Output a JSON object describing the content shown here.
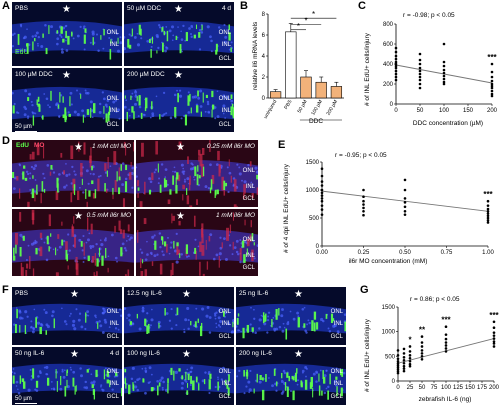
{
  "panels": {
    "A": {
      "letter": "A",
      "tiles": [
        {
          "label": "PBS",
          "extra": "",
          "layers": [
            "ONL",
            "INL"
          ],
          "edu": "EdU"
        },
        {
          "label": "50 µM DDC",
          "extra": "4 d",
          "layers": [
            "ONL",
            "INL",
            "GCL"
          ],
          "edu": ""
        },
        {
          "label": "100 µM DDC",
          "extra": "",
          "layers": [
            "ONL",
            "INL",
            "GCL"
          ],
          "edu": ""
        },
        {
          "label": "200 µM DDC",
          "extra": "",
          "layers": [
            "ONL",
            "INL",
            "GCL"
          ],
          "edu": ""
        }
      ],
      "scalebar": "50 µm"
    },
    "B": {
      "letter": "B",
      "ylabel": "relative il6 mRNA levels",
      "group_label": "DDC"
    },
    "C": {
      "letter": "C",
      "stat": "r = -0.98; p < 0.05",
      "ylabel": "# of INL EdU+ cells/injury",
      "xlabel": "DDC concentration (µM)",
      "sig": "***"
    },
    "D": {
      "letter": "D",
      "legend_edu": "EdU",
      "legend_mo": "MO",
      "tiles": [
        {
          "label": "1 mM ctrl MO",
          "layers": []
        },
        {
          "label": "0.25 mM il6r MO",
          "layers": [
            "ONL",
            "INL",
            "GCL"
          ]
        },
        {
          "label": "0.5 mM il6r MO",
          "layers": []
        },
        {
          "label": "1 mM il6r MO",
          "layers": [
            "ONL",
            "INL",
            "GCL"
          ]
        }
      ]
    },
    "E": {
      "letter": "E",
      "stat": "r = -0.95; p < 0.05",
      "ylabel": "# of 4 dpi INL EdU+ cells/injury",
      "xlabel": "il6r MO concentration (mM)",
      "sig": "***"
    },
    "F": {
      "letter": "F",
      "tiles": [
        {
          "label": "PBS",
          "extra": "",
          "layers": [
            "ONL",
            "INL",
            "GCL"
          ]
        },
        {
          "label": "12.5 ng IL-6",
          "extra": "",
          "layers": [
            "ONL",
            "INL",
            "GCL"
          ]
        },
        {
          "label": "25 ng IL-6",
          "extra": "",
          "layers": [
            "ONL",
            "INL",
            "GCL"
          ]
        },
        {
          "label": "50 ng IL-6",
          "extra": "4 d",
          "layers": [
            "ONL",
            "INL",
            "GCL"
          ]
        },
        {
          "label": "100 ng IL-6",
          "extra": "",
          "layers": [
            "ONL",
            "INL",
            "GCL"
          ]
        },
        {
          "label": "200 ng IL-6",
          "extra": "",
          "layers": [
            "ONL",
            "INL",
            "GCL"
          ]
        }
      ],
      "scalebar": "50 µm"
    },
    "G": {
      "letter": "G",
      "stat": "r = 0.86; p < 0.05",
      "ylabel": "# of INL EdU+ cells/injury",
      "xlabel": "zebrafish IL-6 (ng)",
      "sigs": [
        "*",
        "**",
        "***",
        "***"
      ]
    }
  },
  "chart_data": [
    {
      "panel": "B",
      "type": "bar",
      "categories": [
        "uninjured",
        "PBS",
        "50 µM",
        "100 µM",
        "200 µM"
      ],
      "values": [
        0.6,
        6.3,
        2.0,
        1.5,
        1.1
      ],
      "errors": [
        0.2,
        0.8,
        0.6,
        0.5,
        0.4
      ],
      "ylabel": "relative il6 mRNA levels",
      "ylim": [
        0,
        8
      ],
      "yticks": [
        0,
        2,
        4,
        6,
        8
      ],
      "significance": [
        "*",
        "*",
        "*"
      ]
    },
    {
      "panel": "C",
      "type": "scatter",
      "xlabel": "DDC concentration (µM)",
      "ylabel": "# of INL EdU+ cells/injury",
      "xlim": [
        0,
        200
      ],
      "ylim": [
        0,
        800
      ],
      "xticks": [
        0,
        50,
        100,
        150,
        200
      ],
      "yticks": [
        0,
        200,
        400,
        600,
        800
      ],
      "points": [
        [
          0,
          560
        ],
        [
          0,
          520
        ],
        [
          0,
          480
        ],
        [
          0,
          450
        ],
        [
          0,
          420
        ],
        [
          0,
          400
        ],
        [
          0,
          380
        ],
        [
          0,
          360
        ],
        [
          0,
          330
        ],
        [
          0,
          300
        ],
        [
          0,
          270
        ],
        [
          0,
          240
        ],
        [
          50,
          500
        ],
        [
          50,
          440
        ],
        [
          50,
          400
        ],
        [
          50,
          360
        ],
        [
          50,
          330
        ],
        [
          50,
          300
        ],
        [
          50,
          270
        ],
        [
          50,
          240
        ],
        [
          50,
          200
        ],
        [
          50,
          160
        ],
        [
          100,
          600
        ],
        [
          100,
          420
        ],
        [
          100,
          380
        ],
        [
          100,
          340
        ],
        [
          100,
          310
        ],
        [
          100,
          280
        ],
        [
          100,
          250
        ],
        [
          100,
          220
        ],
        [
          100,
          200
        ],
        [
          200,
          400
        ],
        [
          200,
          320
        ],
        [
          200,
          270
        ],
        [
          200,
          230
        ],
        [
          200,
          200
        ],
        [
          200,
          180
        ],
        [
          200,
          160
        ],
        [
          200,
          130
        ],
        [
          200,
          100
        ],
        [
          200,
          80
        ]
      ],
      "fit": [
        [
          0,
          390
        ],
        [
          200,
          210
        ]
      ],
      "significance": [
        {
          "x": 200,
          "label": "***"
        }
      ]
    },
    {
      "panel": "E",
      "type": "scatter",
      "xlabel": "il6r MO concentration (mM)",
      "ylabel": "# of 4 dpi INL EdU+ cells/injury",
      "xlim": [
        0,
        1
      ],
      "ylim": [
        0,
        1500
      ],
      "xticks": [
        0,
        0.25,
        0.5,
        0.75,
        1.0
      ],
      "yticks": [
        0,
        500,
        1000,
        1500
      ],
      "points": [
        [
          0,
          1380
        ],
        [
          0,
          1250
        ],
        [
          0,
          1150
        ],
        [
          0,
          1080
        ],
        [
          0,
          1000
        ],
        [
          0,
          950
        ],
        [
          0,
          900
        ],
        [
          0,
          850
        ],
        [
          0,
          800
        ],
        [
          0,
          720
        ],
        [
          0,
          650
        ],
        [
          0,
          560
        ],
        [
          0.25,
          1000
        ],
        [
          0.25,
          880
        ],
        [
          0.25,
          800
        ],
        [
          0.25,
          740
        ],
        [
          0.25,
          680
        ],
        [
          0.25,
          620
        ],
        [
          0.25,
          550
        ],
        [
          0.5,
          1180
        ],
        [
          0.5,
          1000
        ],
        [
          0.5,
          850
        ],
        [
          0.5,
          780
        ],
        [
          0.5,
          700
        ],
        [
          0.5,
          620
        ],
        [
          0.5,
          560
        ],
        [
          1,
          800
        ],
        [
          1,
          720
        ],
        [
          1,
          660
        ],
        [
          1,
          620
        ],
        [
          1,
          580
        ],
        [
          1,
          540
        ],
        [
          1,
          500
        ],
        [
          1,
          460
        ],
        [
          1,
          420
        ]
      ],
      "fit": [
        [
          0,
          980
        ],
        [
          1,
          620
        ]
      ],
      "significance": [
        {
          "x": 1,
          "label": "***"
        }
      ]
    },
    {
      "panel": "G",
      "type": "scatter",
      "xlabel": "zebrafish IL-6 (ng)",
      "ylabel": "# of INL EdU+ cells/injury",
      "xlim": [
        0,
        200
      ],
      "ylim": [
        0,
        1500
      ],
      "xticks": [
        0,
        25,
        50,
        75,
        100,
        125,
        150,
        175,
        200
      ],
      "yticks": [
        0,
        500,
        1000,
        1500
      ],
      "points": [
        [
          0,
          620
        ],
        [
          0,
          520
        ],
        [
          0,
          450
        ],
        [
          0,
          400
        ],
        [
          0,
          360
        ],
        [
          0,
          320
        ],
        [
          0,
          280
        ],
        [
          0,
          240
        ],
        [
          0,
          200
        ],
        [
          0,
          160
        ],
        [
          12.5,
          650
        ],
        [
          12.5,
          560
        ],
        [
          12.5,
          480
        ],
        [
          12.5,
          420
        ],
        [
          12.5,
          360
        ],
        [
          12.5,
          300
        ],
        [
          12.5,
          250
        ],
        [
          12.5,
          200
        ],
        [
          25,
          700
        ],
        [
          25,
          600
        ],
        [
          25,
          520
        ],
        [
          25,
          460
        ],
        [
          25,
          400
        ],
        [
          25,
          340
        ],
        [
          25,
          300
        ],
        [
          50,
          900
        ],
        [
          50,
          780
        ],
        [
          50,
          700
        ],
        [
          50,
          620
        ],
        [
          50,
          560
        ],
        [
          50,
          500
        ],
        [
          50,
          440
        ],
        [
          100,
          1100
        ],
        [
          100,
          940
        ],
        [
          100,
          850
        ],
        [
          100,
          780
        ],
        [
          100,
          720
        ],
        [
          100,
          660
        ],
        [
          100,
          600
        ],
        [
          200,
          1200
        ],
        [
          200,
          1080
        ],
        [
          200,
          980
        ],
        [
          200,
          920
        ],
        [
          200,
          860
        ],
        [
          200,
          800
        ],
        [
          200,
          760
        ],
        [
          200,
          700
        ]
      ],
      "fit": [
        [
          0,
          360
        ],
        [
          200,
          860
        ]
      ],
      "significance": [
        {
          "x": 25,
          "label": "*"
        },
        {
          "x": 50,
          "label": "**"
        },
        {
          "x": 100,
          "label": "***"
        },
        {
          "x": 200,
          "label": "***"
        }
      ]
    }
  ]
}
